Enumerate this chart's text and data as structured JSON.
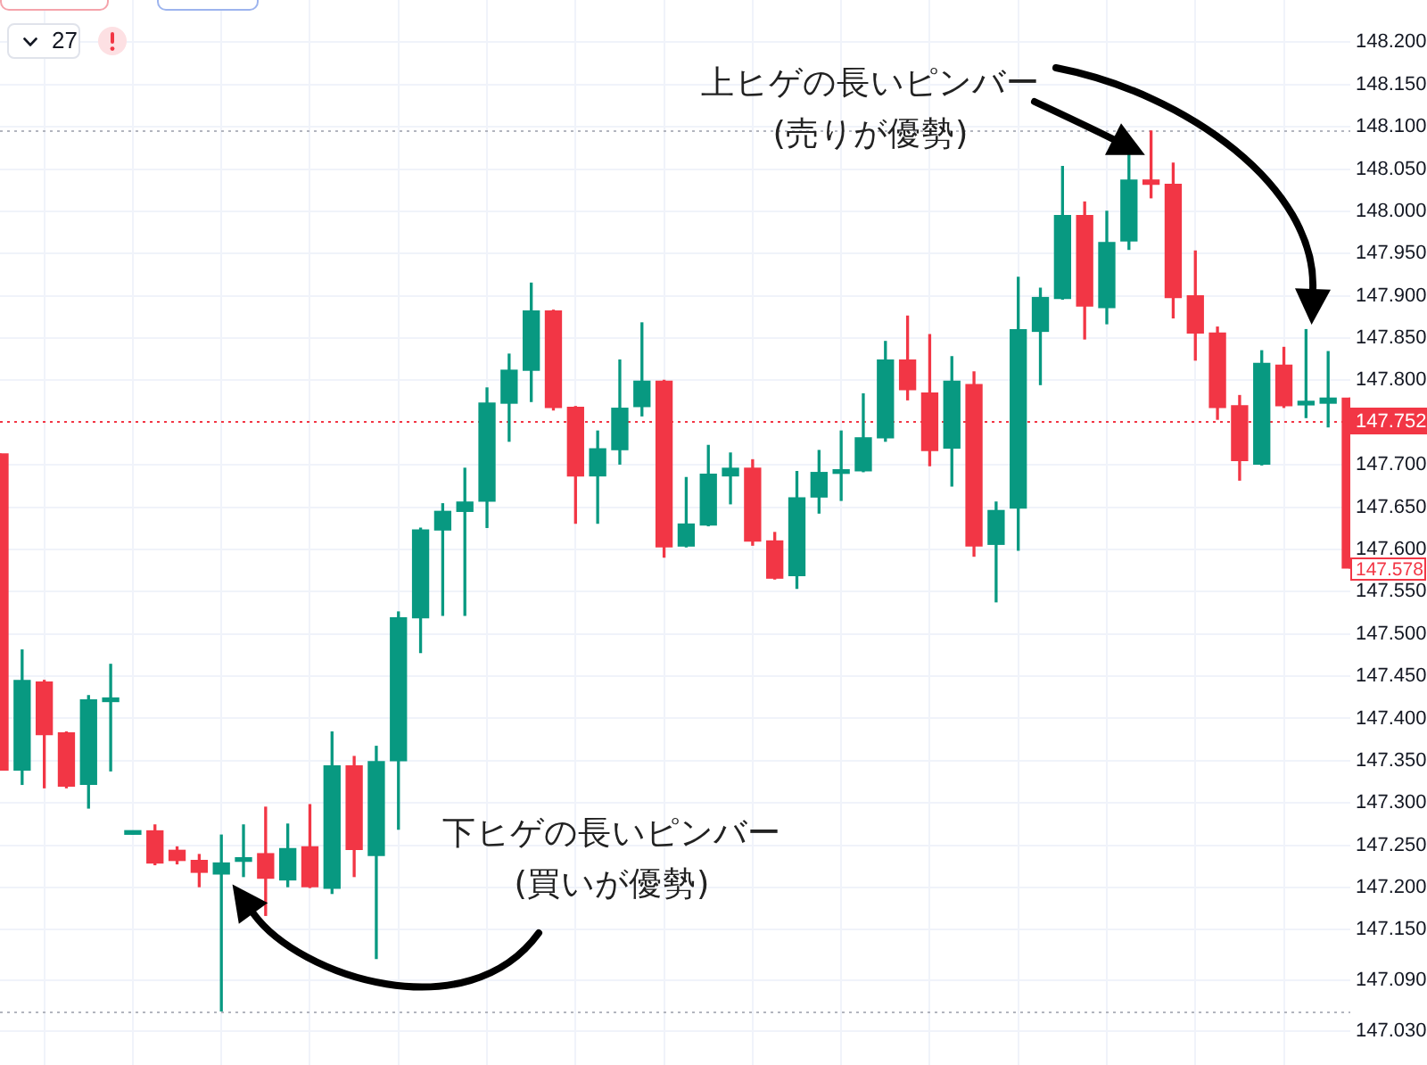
{
  "chart_data": {
    "type": "candlestick",
    "categories": [
      null,
      null,
      null,
      null,
      null,
      null,
      null,
      null,
      null,
      null,
      null,
      null,
      null,
      null,
      null,
      null,
      null,
      null,
      null,
      null,
      null,
      null,
      null,
      null,
      null,
      null,
      null,
      null,
      null,
      null,
      null,
      null,
      null,
      null,
      null,
      null,
      null,
      null,
      null,
      null,
      null,
      null,
      null,
      null,
      null,
      null,
      null,
      null,
      null,
      null,
      null,
      null,
      null,
      null,
      null,
      null,
      null,
      null,
      null,
      null,
      null,
      null
    ],
    "ohlc": [
      [
        147.713,
        147.713,
        147.339,
        147.339
      ],
      [
        147.339,
        147.481,
        147.322,
        147.445
      ],
      [
        147.443,
        147.445,
        147.318,
        147.381
      ],
      [
        147.383,
        147.384,
        147.318,
        147.32
      ],
      [
        147.322,
        147.427,
        147.294,
        147.422
      ],
      [
        147.42,
        147.464,
        147.338,
        147.422
      ],
      [
        147.263,
        147.266,
        147.263,
        147.265
      ],
      [
        147.267,
        147.274,
        147.227,
        147.229
      ],
      [
        147.244,
        147.248,
        147.228,
        147.232
      ],
      [
        147.232,
        147.239,
        147.201,
        147.218
      ],
      [
        147.216,
        147.262,
        147.054,
        147.229
      ],
      [
        147.231,
        147.274,
        147.213,
        147.235
      ],
      [
        147.24,
        147.295,
        147.167,
        147.211
      ],
      [
        147.209,
        147.275,
        147.201,
        147.246
      ],
      [
        147.248,
        147.298,
        147.2,
        147.201
      ],
      [
        147.199,
        147.384,
        147.193,
        147.344
      ],
      [
        147.344,
        147.355,
        147.213,
        147.245
      ],
      [
        147.238,
        147.367,
        147.116,
        147.349
      ],
      [
        147.35,
        147.526,
        147.269,
        147.519
      ],
      [
        147.519,
        147.625,
        147.478,
        147.623
      ],
      [
        147.623,
        147.654,
        147.522,
        147.645
      ],
      [
        147.645,
        147.696,
        147.522,
        147.656
      ],
      [
        147.657,
        147.791,
        147.626,
        147.773
      ],
      [
        147.773,
        147.831,
        147.728,
        147.812
      ],
      [
        147.812,
        147.915,
        147.775,
        147.882
      ],
      [
        147.882,
        147.883,
        147.765,
        147.768
      ],
      [
        147.768,
        147.769,
        147.631,
        147.687
      ],
      [
        147.687,
        147.74,
        147.631,
        147.719
      ],
      [
        147.718,
        147.824,
        147.701,
        147.767
      ],
      [
        147.769,
        147.868,
        147.758,
        147.799
      ],
      [
        147.799,
        147.8,
        147.591,
        147.603
      ],
      [
        147.604,
        147.685,
        147.603,
        147.63
      ],
      [
        147.629,
        147.723,
        147.628,
        147.689
      ],
      [
        147.687,
        147.714,
        147.654,
        147.696
      ],
      [
        147.696,
        147.706,
        147.605,
        147.61
      ],
      [
        147.61,
        147.62,
        147.565,
        147.566
      ],
      [
        147.569,
        147.692,
        147.554,
        147.661
      ],
      [
        147.662,
        147.717,
        147.643,
        147.691
      ],
      [
        147.69,
        147.74,
        147.658,
        147.692
      ],
      [
        147.693,
        147.784,
        147.692,
        147.732
      ],
      [
        147.732,
        147.846,
        147.728,
        147.824
      ],
      [
        147.824,
        147.876,
        147.777,
        147.789
      ],
      [
        147.785,
        147.854,
        147.699,
        147.717
      ],
      [
        147.72,
        147.828,
        147.675,
        147.799
      ],
      [
        147.795,
        147.81,
        147.592,
        147.604
      ],
      [
        147.606,
        147.656,
        147.538,
        147.646
      ],
      [
        147.649,
        147.922,
        147.599,
        147.86
      ],
      [
        147.858,
        147.909,
        147.795,
        147.898
      ],
      [
        147.897,
        148.053,
        147.896,
        147.995
      ],
      [
        147.995,
        148.011,
        147.849,
        147.888
      ],
      [
        147.886,
        148.0,
        147.867,
        147.963
      ],
      [
        147.965,
        148.067,
        147.955,
        148.037
      ],
      [
        148.037,
        148.095,
        148.016,
        148.032
      ],
      [
        148.032,
        148.057,
        147.874,
        147.898
      ],
      [
        147.9,
        147.953,
        147.824,
        147.856
      ],
      [
        147.856,
        147.863,
        147.754,
        147.768
      ],
      [
        147.77,
        147.782,
        147.682,
        147.705
      ],
      [
        147.701,
        147.835,
        147.7,
        147.82
      ],
      [
        147.818,
        147.839,
        147.768,
        147.77
      ],
      [
        147.771,
        147.86,
        147.756,
        147.773
      ],
      [
        147.773,
        147.834,
        147.745,
        147.779
      ],
      [
        147.779,
        147.779,
        147.578,
        147.578
      ]
    ],
    "colors": [
      "#f23645",
      "#089981",
      "#f23645",
      "#f23645",
      "#089981",
      "#089981",
      "#089981",
      "#f23645",
      "#f23645",
      "#f23645",
      "#089981",
      "#089981",
      "#f23645",
      "#089981",
      "#f23645",
      "#089981",
      "#f23645",
      "#089981",
      "#089981",
      "#089981",
      "#089981",
      "#089981",
      "#089981",
      "#089981",
      "#089981",
      "#f23645",
      "#f23645",
      "#089981",
      "#089981",
      "#089981",
      "#f23645",
      "#089981",
      "#089981",
      "#089981",
      "#f23645",
      "#f23645",
      "#089981",
      "#089981",
      "#089981",
      "#089981",
      "#089981",
      "#f23645",
      "#f23645",
      "#089981",
      "#f23645",
      "#089981",
      "#089981",
      "#089981",
      "#089981",
      "#f23645",
      "#089981",
      "#089981",
      "#f23645",
      "#f23645",
      "#f23645",
      "#f23645",
      "#f23645",
      "#089981",
      "#f23645",
      "#089981",
      "#089981",
      "#f23645"
    ],
    "ylim": [
      146.99,
      148.25
    ],
    "yticks": [
      {
        "value": 147.03,
        "label": "147.030"
      },
      {
        "value": 147.09,
        "label": "147.090"
      },
      {
        "value": 147.15,
        "label": "147.150"
      },
      {
        "value": 147.2,
        "label": "147.200"
      },
      {
        "value": 147.25,
        "label": "147.250"
      },
      {
        "value": 147.3,
        "label": "147.300"
      },
      {
        "value": 147.35,
        "label": "147.350"
      },
      {
        "value": 147.4,
        "label": "147.400"
      },
      {
        "value": 147.45,
        "label": "147.450"
      },
      {
        "value": 147.5,
        "label": "147.500"
      },
      {
        "value": 147.55,
        "label": "147.550"
      },
      {
        "value": 147.6,
        "label": "147.600"
      },
      {
        "value": 147.65,
        "label": "147.650"
      },
      {
        "value": 147.7,
        "label": "147.700"
      },
      {
        "value": 147.8,
        "label": "147.800"
      },
      {
        "value": 147.85,
        "label": "147.850"
      },
      {
        "value": 147.9,
        "label": "147.900"
      },
      {
        "value": 147.95,
        "label": "147.950"
      },
      {
        "value": 148.0,
        "label": "148.000"
      },
      {
        "value": 148.05,
        "label": "148.050"
      },
      {
        "value": 148.1,
        "label": "148.100"
      },
      {
        "value": 148.15,
        "label": "148.150"
      },
      {
        "value": 148.2,
        "label": "148.200"
      }
    ],
    "grid": true,
    "tick_labels": "y",
    "ref_lines": [
      {
        "axis": "y",
        "value": 147.752,
        "label": "147.752",
        "color": "#f23645",
        "line_style": "dotted"
      },
      {
        "axis": "y",
        "value": 148.095,
        "color": "#b2b5be",
        "line_style": "dotted"
      },
      {
        "axis": "y",
        "value": 147.054,
        "color": "#b2b5be",
        "line_style": "dotted"
      }
    ],
    "annotations": [
      "上ヒゲの長いピンバー\n(売りが優勢)",
      "下ヒゲの長いピンバー\n(買いが優勢)",
      "147.578",
      "27"
    ]
  }
}
